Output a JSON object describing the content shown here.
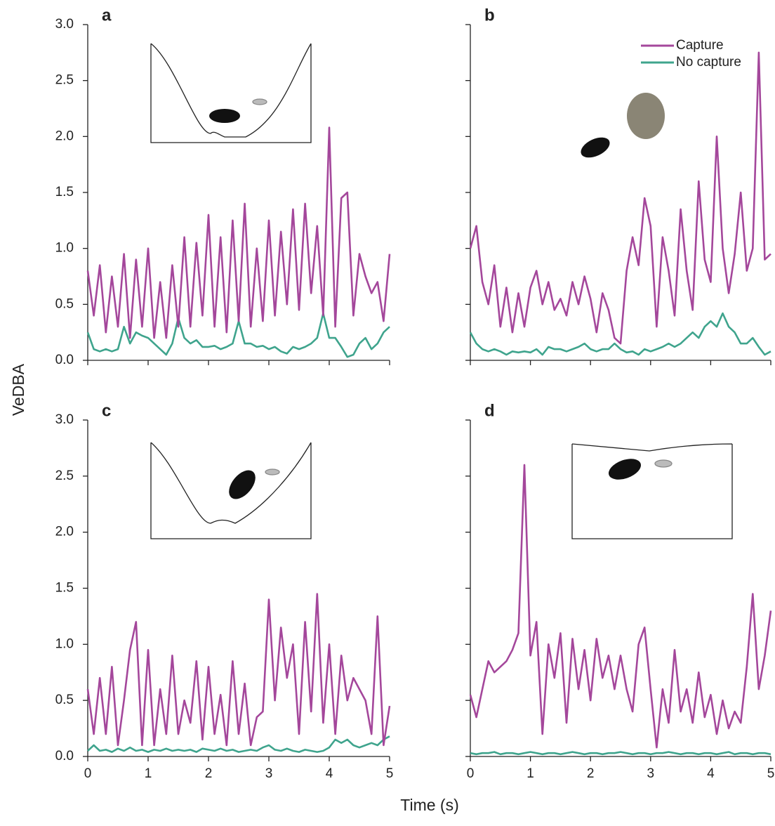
{
  "labels": {
    "xlabel": "Time (s)",
    "ylabel": "VeDBA"
  },
  "chart_data": [
    {
      "type": "line",
      "panel_label": "a",
      "x": [
        0,
        0.1,
        0.2,
        0.3,
        0.4,
        0.5,
        0.6,
        0.7,
        0.8,
        0.9,
        1,
        1.1,
        1.2,
        1.3,
        1.4,
        1.5,
        1.6,
        1.7,
        1.8,
        1.9,
        2,
        2.1,
        2.2,
        2.3,
        2.4,
        2.5,
        2.6,
        2.7,
        2.8,
        2.9,
        3,
        3.1,
        3.2,
        3.3,
        3.4,
        3.5,
        3.6,
        3.7,
        3.8,
        3.9,
        4,
        4.1,
        4.2,
        4.3,
        4.4,
        4.5,
        4.6,
        4.7,
        4.8,
        4.9,
        5
      ],
      "series": [
        {
          "name": "Capture",
          "color": "#a4479b",
          "values": [
            0.8,
            0.4,
            0.85,
            0.25,
            0.75,
            0.3,
            0.95,
            0.2,
            0.9,
            0.3,
            1.0,
            0.2,
            0.7,
            0.2,
            0.85,
            0.3,
            1.1,
            0.3,
            1.05,
            0.4,
            1.3,
            0.3,
            1.1,
            0.25,
            1.25,
            0.35,
            1.4,
            0.3,
            1.0,
            0.35,
            1.25,
            0.4,
            1.15,
            0.5,
            1.35,
            0.45,
            1.4,
            0.6,
            1.2,
            0.4,
            2.08,
            0.3,
            1.45,
            1.5,
            0.4,
            0.95,
            0.75,
            0.6,
            0.7,
            0.35,
            0.95
          ]
        },
        {
          "name": "No capture",
          "color": "#3fa48d",
          "values": [
            0.25,
            0.1,
            0.08,
            0.1,
            0.08,
            0.1,
            0.3,
            0.15,
            0.25,
            0.22,
            0.2,
            0.15,
            0.1,
            0.05,
            0.15,
            0.38,
            0.2,
            0.15,
            0.18,
            0.12,
            0.12,
            0.13,
            0.1,
            0.12,
            0.15,
            0.35,
            0.15,
            0.15,
            0.12,
            0.13,
            0.1,
            0.12,
            0.08,
            0.06,
            0.12,
            0.1,
            0.12,
            0.15,
            0.2,
            0.42,
            0.2,
            0.2,
            0.12,
            0.03,
            0.05,
            0.15,
            0.2,
            0.1,
            0.15,
            0.25,
            0.3
          ]
        }
      ],
      "xlim": [
        0,
        5
      ],
      "ylim": [
        0,
        3
      ],
      "xticks": [
        0,
        1,
        2,
        3,
        4,
        5
      ],
      "yticks": [
        {
          "value": 0,
          "label": "0.0"
        },
        0.5,
        {
          "value": 1,
          "label": "1.0"
        },
        1.5,
        {
          "value": 2,
          "label": "2.0"
        },
        2.5,
        {
          "value": 3,
          "label": "3.0"
        }
      ]
    },
    {
      "type": "line",
      "panel_label": "b",
      "legend": "upper right",
      "x": [
        0,
        0.1,
        0.2,
        0.3,
        0.4,
        0.5,
        0.6,
        0.7,
        0.8,
        0.9,
        1,
        1.1,
        1.2,
        1.3,
        1.4,
        1.5,
        1.6,
        1.7,
        1.8,
        1.9,
        2,
        2.1,
        2.2,
        2.3,
        2.4,
        2.5,
        2.6,
        2.7,
        2.8,
        2.9,
        3,
        3.1,
        3.2,
        3.3,
        3.4,
        3.5,
        3.6,
        3.7,
        3.8,
        3.9,
        4,
        4.1,
        4.2,
        4.3,
        4.4,
        4.5,
        4.6,
        4.7,
        4.8,
        4.9,
        5
      ],
      "series": [
        {
          "name": "Capture",
          "color": "#a4479b",
          "values": [
            1.0,
            1.2,
            0.7,
            0.5,
            0.85,
            0.3,
            0.65,
            0.25,
            0.6,
            0.3,
            0.65,
            0.8,
            0.5,
            0.7,
            0.45,
            0.55,
            0.4,
            0.7,
            0.5,
            0.75,
            0.55,
            0.25,
            0.6,
            0.45,
            0.2,
            0.15,
            0.8,
            1.1,
            0.85,
            1.45,
            1.2,
            0.3,
            1.1,
            0.8,
            0.4,
            1.35,
            0.8,
            0.45,
            1.6,
            0.9,
            0.7,
            2.0,
            1.0,
            0.6,
            0.95,
            1.5,
            0.8,
            1.0,
            2.75,
            0.9,
            0.95
          ]
        },
        {
          "name": "No capture",
          "color": "#3fa48d",
          "values": [
            0.25,
            0.15,
            0.1,
            0.08,
            0.1,
            0.08,
            0.05,
            0.08,
            0.07,
            0.08,
            0.07,
            0.1,
            0.05,
            0.12,
            0.1,
            0.1,
            0.08,
            0.1,
            0.12,
            0.15,
            0.1,
            0.08,
            0.1,
            0.1,
            0.15,
            0.1,
            0.07,
            0.08,
            0.05,
            0.1,
            0.08,
            0.1,
            0.12,
            0.15,
            0.12,
            0.15,
            0.2,
            0.25,
            0.2,
            0.3,
            0.35,
            0.3,
            0.42,
            0.3,
            0.25,
            0.15,
            0.15,
            0.2,
            0.12,
            0.05,
            0.08
          ]
        }
      ],
      "xlim": [
        0,
        5
      ],
      "ylim": [
        0,
        3
      ],
      "xticks": [
        0,
        1,
        2,
        3,
        4,
        5
      ],
      "yticks": [
        {
          "value": 0,
          "label": "0.0"
        },
        0.5,
        {
          "value": 1,
          "label": "1.0"
        },
        1.5,
        {
          "value": 2,
          "label": "2.0"
        },
        2.5,
        {
          "value": 3,
          "label": "3.0"
        }
      ]
    },
    {
      "type": "line",
      "panel_label": "c",
      "x": [
        0,
        0.1,
        0.2,
        0.3,
        0.4,
        0.5,
        0.6,
        0.7,
        0.8,
        0.9,
        1,
        1.1,
        1.2,
        1.3,
        1.4,
        1.5,
        1.6,
        1.7,
        1.8,
        1.9,
        2,
        2.1,
        2.2,
        2.3,
        2.4,
        2.5,
        2.6,
        2.7,
        2.8,
        2.9,
        3,
        3.1,
        3.2,
        3.3,
        3.4,
        3.5,
        3.6,
        3.7,
        3.8,
        3.9,
        4,
        4.1,
        4.2,
        4.3,
        4.4,
        4.5,
        4.6,
        4.7,
        4.8,
        4.9,
        5
      ],
      "series": [
        {
          "name": "Capture",
          "color": "#a4479b",
          "values": [
            0.6,
            0.2,
            0.7,
            0.2,
            0.8,
            0.1,
            0.5,
            0.95,
            1.2,
            0.1,
            0.95,
            0.1,
            0.6,
            0.2,
            0.9,
            0.2,
            0.5,
            0.3,
            0.85,
            0.15,
            0.8,
            0.2,
            0.55,
            0.1,
            0.85,
            0.2,
            0.65,
            0.1,
            0.35,
            0.4,
            1.4,
            0.5,
            1.15,
            0.7,
            1.0,
            0.2,
            1.2,
            0.4,
            1.45,
            0.3,
            1.0,
            0.2,
            0.9,
            0.5,
            0.7,
            0.6,
            0.5,
            0.2,
            1.25,
            0.1,
            0.45
          ]
        },
        {
          "name": "No capture",
          "color": "#3fa48d",
          "values": [
            0.05,
            0.1,
            0.05,
            0.06,
            0.04,
            0.07,
            0.05,
            0.08,
            0.05,
            0.06,
            0.04,
            0.06,
            0.05,
            0.07,
            0.05,
            0.06,
            0.05,
            0.06,
            0.04,
            0.07,
            0.06,
            0.05,
            0.07,
            0.05,
            0.06,
            0.04,
            0.05,
            0.06,
            0.05,
            0.08,
            0.1,
            0.06,
            0.05,
            0.07,
            0.05,
            0.04,
            0.06,
            0.05,
            0.04,
            0.05,
            0.08,
            0.15,
            0.12,
            0.15,
            0.1,
            0.08,
            0.1,
            0.12,
            0.1,
            0.15,
            0.18
          ]
        }
      ],
      "xlim": [
        0,
        5
      ],
      "ylim": [
        0,
        3
      ],
      "xticks": [
        0,
        1,
        2,
        3,
        4,
        5
      ],
      "yticks": [
        {
          "value": 0,
          "label": "0.0"
        },
        0.5,
        {
          "value": 1,
          "label": "1.0"
        },
        1.5,
        {
          "value": 2,
          "label": "2.0"
        },
        2.5,
        {
          "value": 3,
          "label": "3.0"
        }
      ]
    },
    {
      "type": "line",
      "panel_label": "d",
      "x": [
        0,
        0.1,
        0.2,
        0.3,
        0.4,
        0.5,
        0.6,
        0.7,
        0.8,
        0.9,
        1,
        1.1,
        1.2,
        1.3,
        1.4,
        1.5,
        1.6,
        1.7,
        1.8,
        1.9,
        2,
        2.1,
        2.2,
        2.3,
        2.4,
        2.5,
        2.6,
        2.7,
        2.8,
        2.9,
        3,
        3.1,
        3.2,
        3.3,
        3.4,
        3.5,
        3.6,
        3.7,
        3.8,
        3.9,
        4,
        4.1,
        4.2,
        4.3,
        4.4,
        4.5,
        4.6,
        4.7,
        4.8,
        4.9,
        5
      ],
      "series": [
        {
          "name": "Capture",
          "color": "#a4479b",
          "values": [
            0.55,
            0.35,
            0.6,
            0.85,
            0.75,
            0.8,
            0.85,
            0.95,
            1.1,
            2.6,
            0.9,
            1.2,
            0.2,
            1.0,
            0.7,
            1.1,
            0.3,
            1.05,
            0.6,
            0.95,
            0.5,
            1.05,
            0.7,
            0.9,
            0.6,
            0.9,
            0.6,
            0.4,
            1.0,
            1.15,
            0.6,
            0.08,
            0.6,
            0.3,
            0.95,
            0.4,
            0.6,
            0.3,
            0.75,
            0.35,
            0.55,
            0.2,
            0.5,
            0.25,
            0.4,
            0.3,
            0.8,
            1.45,
            0.6,
            0.9,
            1.3
          ]
        },
        {
          "name": "No capture",
          "color": "#3fa48d",
          "values": [
            0.03,
            0.02,
            0.03,
            0.03,
            0.04,
            0.02,
            0.03,
            0.03,
            0.02,
            0.03,
            0.04,
            0.03,
            0.02,
            0.03,
            0.03,
            0.02,
            0.03,
            0.04,
            0.03,
            0.02,
            0.03,
            0.03,
            0.02,
            0.03,
            0.03,
            0.04,
            0.03,
            0.02,
            0.03,
            0.03,
            0.02,
            0.03,
            0.03,
            0.04,
            0.03,
            0.02,
            0.03,
            0.03,
            0.02,
            0.03,
            0.03,
            0.02,
            0.03,
            0.04,
            0.02,
            0.03,
            0.03,
            0.02,
            0.03,
            0.03,
            0.02
          ]
        }
      ],
      "xlim": [
        0,
        5
      ],
      "ylim": [
        0,
        3
      ],
      "xticks": [
        0,
        1,
        2,
        3,
        4,
        5
      ],
      "yticks": [
        {
          "value": 0,
          "label": "0.0"
        },
        0.5,
        {
          "value": 1,
          "label": "1.0"
        },
        1.5,
        {
          "value": 2,
          "label": "2.0"
        },
        2.5,
        {
          "value": 3,
          "label": "3.0"
        }
      ]
    }
  ]
}
